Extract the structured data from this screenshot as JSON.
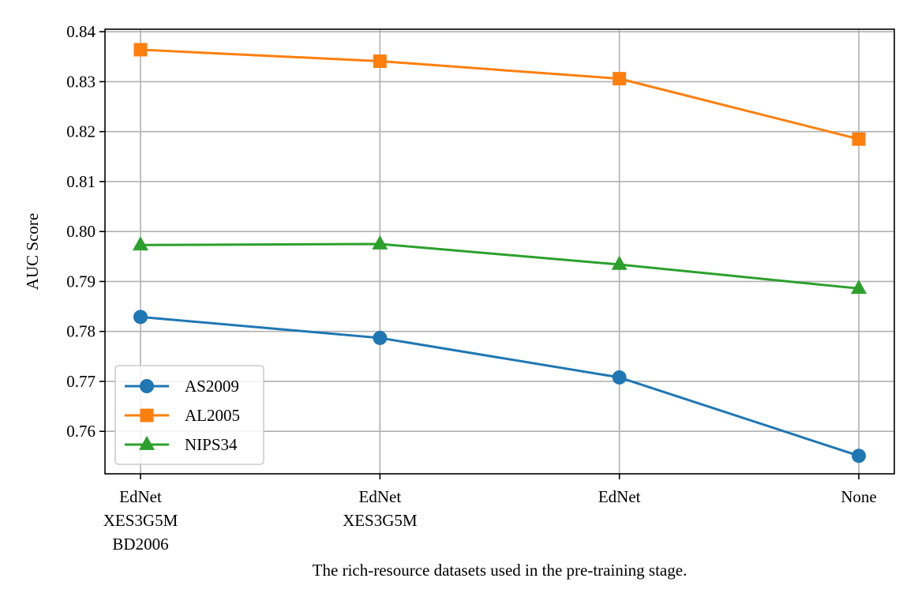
{
  "chart_data": {
    "type": "line",
    "title": "",
    "xlabel": "The rich-resource datasets used in the pre-training stage.",
    "ylabel": "AUC Score",
    "categories": [
      [
        "EdNet",
        "XES3G5M",
        "BD2006"
      ],
      [
        "EdNet",
        "XES3G5M"
      ],
      [
        "EdNet"
      ],
      [
        "None"
      ]
    ],
    "ylim": [
      0.7515,
      0.8405
    ],
    "yticks": [
      0.76,
      0.77,
      0.78,
      0.79,
      0.8,
      0.81,
      0.82,
      0.83,
      0.84
    ],
    "ytick_labels": [
      "0.76",
      "0.77",
      "0.78",
      "0.79",
      "0.80",
      "0.81",
      "0.82",
      "0.83",
      "0.84"
    ],
    "grid": true,
    "legend_position": "lower-left",
    "series": [
      {
        "name": "AS2009",
        "values": [
          0.7829,
          0.7787,
          0.7708,
          0.7551
        ],
        "color": "#1f77b4",
        "marker": "circle"
      },
      {
        "name": "AL2005",
        "values": [
          0.8364,
          0.8341,
          0.8306,
          0.8185
        ],
        "color": "#ff7f0e",
        "marker": "square"
      },
      {
        "name": "NIPS34",
        "values": [
          0.7973,
          0.7975,
          0.7934,
          0.7886
        ],
        "color": "#2ca02c",
        "marker": "triangle"
      }
    ]
  }
}
